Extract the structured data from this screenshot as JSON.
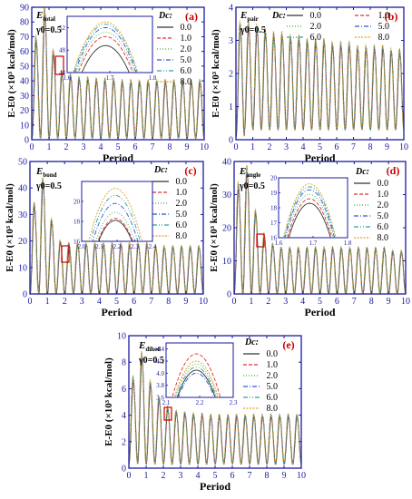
{
  "colors": {
    "frame": "#1a1aa0",
    "panel_letter": "#cc0000",
    "highlight_box": "#cc0000",
    "series": [
      "#333333",
      "#e03030",
      "#3ab03a",
      "#2a5adf",
      "#30a0a0",
      "#e0a020"
    ]
  },
  "series_styles": [
    "solid",
    "dash",
    "dot",
    "dashdot",
    "dashdotdot",
    "shortdot"
  ],
  "chart_data": [
    {
      "panel": "(a)",
      "type": "line",
      "energy_label": "E",
      "energy_sub": "total",
      "gamma_label": "γ0=0.5",
      "legend_title": "Dc:",
      "legend": [
        "0.0",
        "1.0",
        "2.0",
        "5.0",
        "6.0",
        "8.0"
      ],
      "xlabel": "Period",
      "ylabel": "E-E0 (×10³ kcal/mol)",
      "xlim": [
        0,
        10
      ],
      "ylim": [
        0,
        90
      ],
      "xticks": [
        0,
        1,
        2,
        3,
        4,
        5,
        6,
        7,
        8,
        9,
        10
      ],
      "yticks": [
        0,
        10,
        20,
        30,
        40,
        50,
        60,
        70,
        80,
        90
      ],
      "peaks": [
        69,
        88,
        60,
        46,
        44,
        42,
        42,
        41,
        41,
        41,
        40,
        40,
        40,
        40,
        40,
        40,
        40,
        40,
        40,
        40
      ],
      "troughs": [
        1,
        1,
        1,
        1,
        1,
        1,
        1,
        1,
        1,
        1,
        1,
        1,
        1,
        1,
        1,
        1,
        1,
        1,
        1,
        1
      ],
      "inset": {
        "xlim": [
          1.6,
          1.8
        ],
        "ylim": [
          44,
          54
        ],
        "xticks": [
          "1.6",
          "1.7",
          "1.8"
        ],
        "yticks": [
          "44",
          "48",
          "52"
        ],
        "peak_x": 1.69,
        "peak_values": [
          48.8,
          50.4,
          51.2,
          52.0,
          52.6,
          53.0
        ]
      }
    },
    {
      "panel": "(b)",
      "type": "line",
      "energy_label": "E",
      "energy_sub": "pair",
      "gamma_label": "γ0=0.5",
      "legend_title": "Dc:",
      "legend": [
        "0.0",
        "1.0",
        "2.0",
        "5.0",
        "6.0",
        "8.0"
      ],
      "xlabel": "Period",
      "ylabel": "E-E0 (×10³ kcal/mol)",
      "xlim": [
        0,
        10
      ],
      "ylim": [
        0,
        4
      ],
      "xticks": [
        0,
        1,
        2,
        3,
        4,
        5,
        6,
        7,
        8,
        9,
        10
      ],
      "yticks": [
        0,
        1,
        2,
        3,
        4
      ],
      "peaks": [
        3.5,
        3.5,
        3.4,
        3.3,
        3.2,
        3.2,
        3.1,
        3.1,
        3.0,
        3.0,
        3.0,
        2.9,
        2.9,
        2.9,
        2.8,
        2.8,
        2.8,
        2.8,
        2.7,
        2.7
      ],
      "troughs": [
        0.1,
        0.3,
        0.3,
        0.3,
        0.3,
        0.3,
        0.3,
        0.3,
        0.3,
        0.3,
        0.3,
        0.3,
        0.3,
        0.3,
        0.3,
        0.3,
        0.3,
        0.3,
        0.3,
        0.3
      ]
    },
    {
      "panel": "(c)",
      "type": "line",
      "energy_label": "E",
      "energy_sub": "bond",
      "gamma_label": "γ0=0.5",
      "legend_title": "Dc:",
      "legend": [
        "0.0",
        "1.0",
        "2.0",
        "5.0",
        "6.0",
        "8.0"
      ],
      "xlabel": "Period",
      "ylabel": "E-E0 (×10³ kcal/mol)",
      "xlim": [
        0,
        10
      ],
      "ylim": [
        0,
        50
      ],
      "xticks": [
        0,
        1,
        2,
        3,
        4,
        5,
        6,
        7,
        8,
        9,
        10
      ],
      "yticks": [
        0,
        10,
        20,
        30,
        40,
        50
      ],
      "peaks": [
        34,
        43,
        28,
        20,
        19,
        19,
        19,
        19,
        19,
        19,
        19,
        19,
        19,
        19,
        18,
        18,
        18,
        18,
        18,
        18
      ],
      "troughs": [
        0,
        0,
        0,
        0,
        0,
        0,
        0,
        0,
        0,
        0,
        0,
        0,
        0,
        0,
        0,
        0,
        0,
        0,
        0,
        0
      ],
      "inset": {
        "xlim": [
          2.0,
          2.4
        ],
        "ylim": [
          16,
          22
        ],
        "xticks": [
          "2.0",
          "2.1",
          "2.2",
          "2.3",
          "2.4"
        ],
        "yticks": [
          "16",
          "18",
          "20"
        ],
        "peak_x": 2.19,
        "peak_values": [
          18.1,
          18.3,
          18.9,
          19.8,
          20.6,
          21.3
        ]
      }
    },
    {
      "panel": "(d)",
      "type": "line",
      "energy_label": "E",
      "energy_sub": "angle",
      "gamma_label": "γ0=0.5",
      "legend_title": "Dc:",
      "legend": [
        "0.0",
        "1.0",
        "2.0",
        "5.0",
        "6.0",
        "8.0"
      ],
      "xlabel": "Period",
      "ylabel": "E-E0 (×10³ kcal/mol)",
      "xlim": [
        0,
        10
      ],
      "ylim": [
        0,
        40
      ],
      "xticks": [
        0,
        1,
        2,
        3,
        4,
        5,
        6,
        7,
        8,
        9,
        10
      ],
      "yticks": [
        0,
        10,
        20,
        30,
        40
      ],
      "peaks": [
        33,
        38,
        25,
        18,
        15,
        14,
        14,
        14,
        14,
        14,
        14,
        14,
        14,
        14,
        14,
        14,
        14,
        14,
        13,
        13
      ],
      "troughs": [
        0,
        0,
        0,
        0,
        0,
        0,
        0,
        0,
        0,
        0,
        0,
        0,
        0,
        0,
        0,
        0,
        0,
        0,
        0,
        0
      ],
      "inset": {
        "xlim": [
          1.6,
          1.8
        ],
        "ylim": [
          16,
          20
        ],
        "xticks": [
          "1.6",
          "1.7",
          "1.8"
        ],
        "yticks": [
          "16",
          "17",
          "18",
          "19",
          "20"
        ],
        "peak_x": 1.69,
        "peak_values": [
          18.3,
          18.6,
          18.9,
          19.2,
          19.4,
          19.6
        ]
      }
    },
    {
      "panel": "(e)",
      "type": "line",
      "energy_label": "E",
      "energy_sub": "dihed",
      "gamma_label": "γ0=0.5",
      "legend_title": "Dc:",
      "legend": [
        "0.0",
        "1.0",
        "2.0",
        "5.0",
        "6.0",
        "8.0"
      ],
      "xlabel": "Period",
      "ylabel": "E-E0 (×10³ kcal/mol)",
      "xlim": [
        0,
        10
      ],
      "ylim": [
        0,
        10
      ],
      "xticks": [
        0,
        1,
        2,
        3,
        4,
        5,
        6,
        7,
        8,
        9,
        10
      ],
      "yticks": [
        0,
        2,
        4,
        6,
        8,
        10
      ],
      "peaks": [
        6.8,
        8.6,
        6.5,
        5.3,
        4.6,
        4.3,
        4.2,
        4.1,
        4.1,
        4.0,
        4.0,
        4.0,
        4.0,
        4.0,
        4.0,
        4.0,
        4.0,
        4.0,
        4.0,
        4.0
      ],
      "troughs": [
        0.4,
        0.3,
        0.3,
        0.3,
        0.3,
        0.3,
        0.3,
        0.3,
        0.3,
        0.3,
        0.3,
        0.3,
        0.3,
        0.3,
        0.3,
        0.3,
        0.3,
        0.3,
        0.3,
        0.3
      ],
      "inset": {
        "xlim": [
          2.1,
          2.3
        ],
        "ylim": [
          3.6,
          4.5
        ],
        "xticks": [
          "2.1",
          "2.2",
          "2.3"
        ],
        "yticks": [
          "3.6",
          "3.8",
          "4.0",
          "4.2",
          "4.4"
        ],
        "peak_x": 2.19,
        "peak_values": [
          4.05,
          4.32,
          4.15,
          4.0,
          4.1,
          4.2
        ]
      }
    }
  ]
}
